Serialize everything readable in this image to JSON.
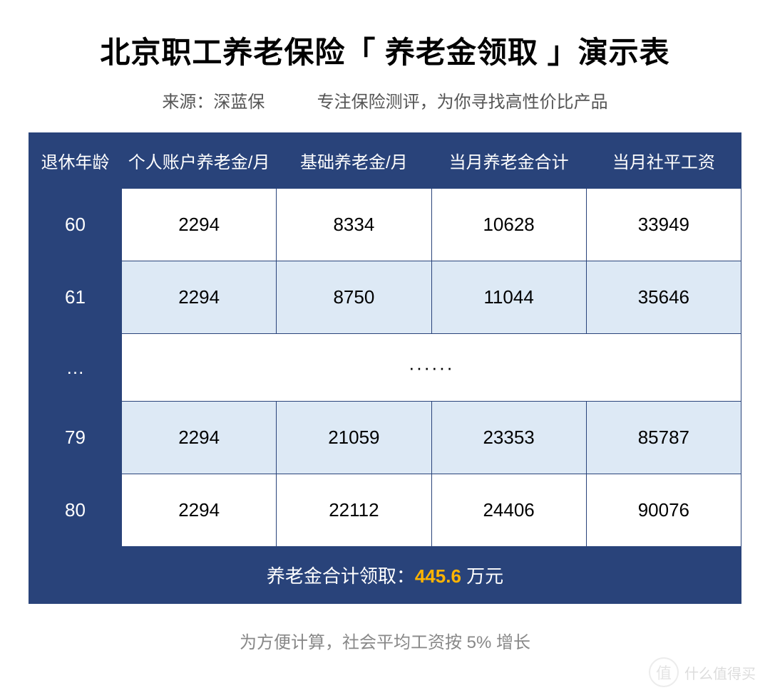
{
  "title": "北京职工养老保险「 养老金领取 」演示表",
  "subtitle_source": "来源：深蓝保",
  "subtitle_slogan": "专注保险测评，为你寻找高性价比产品",
  "table": {
    "type": "table",
    "header_bg": "#29437a",
    "header_fg": "#ffffff",
    "border_color": "#29437a",
    "row_even_bg": "#ffffff",
    "row_odd_bg": "#dde9f5",
    "columns": [
      "退休年龄",
      "个人账户养老金/月",
      "基础养老金/月",
      "当月养老金合计",
      "当月社平工资"
    ],
    "col_widths": [
      "130px",
      "auto",
      "auto",
      "auto",
      "auto"
    ],
    "rows": [
      {
        "age": "60",
        "personal": "2294",
        "basic": "8334",
        "total": "10628",
        "avg_wage": "33949",
        "parity": "even"
      },
      {
        "age": "61",
        "personal": "2294",
        "basic": "8750",
        "total": "11044",
        "avg_wage": "35646",
        "parity": "odd"
      },
      {
        "ellipsis": true,
        "age_label": "…",
        "body_label": "······"
      },
      {
        "age": "79",
        "personal": "2294",
        "basic": "21059",
        "total": "23353",
        "avg_wage": "85787",
        "parity": "odd"
      },
      {
        "age": "80",
        "personal": "2294",
        "basic": "22112",
        "total": "24406",
        "avg_wage": "90076",
        "parity": "even"
      }
    ],
    "summary_label": "养老金合计领取：",
    "summary_amount": "445.6",
    "summary_unit": " 万元",
    "summary_amount_color": "#ffb400"
  },
  "footnote": "为方便计算，社会平均工资按 5% 增长",
  "watermark_badge": "值",
  "watermark_text": "什么值得买"
}
